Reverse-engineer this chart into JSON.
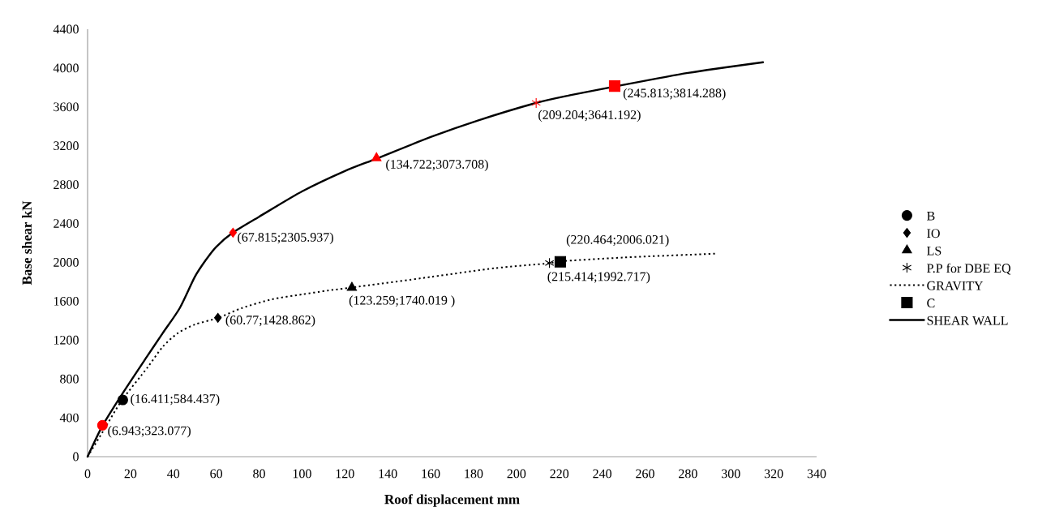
{
  "chart_data": {
    "type": "line",
    "xlabel": "Roof displacement mm",
    "ylabel": "Base shear kN",
    "xlim": [
      0,
      340
    ],
    "xticks": [
      0,
      20,
      40,
      60,
      80,
      100,
      120,
      140,
      160,
      180,
      200,
      220,
      240,
      260,
      280,
      300,
      320,
      340
    ],
    "ylim": [
      0,
      4400
    ],
    "yticks": [
      0,
      400,
      800,
      1200,
      1600,
      2000,
      2400,
      2800,
      3200,
      3600,
      4000,
      4400
    ],
    "legend": "right",
    "series": [
      {
        "name": "B",
        "type": "scatter",
        "marker": "circle",
        "color": "#000000",
        "colors": [
          "#ff0000",
          "#000000"
        ],
        "x": [
          6.943,
          16.411
        ],
        "values": [
          323.077,
          584.437
        ],
        "value_labels": [
          "(6.943;323.077)",
          "(16.411;584.437)"
        ]
      },
      {
        "name": "IO",
        "type": "scatter",
        "marker": "diamond",
        "color": "#000000",
        "colors": [
          "#ff0000",
          "#000000"
        ],
        "x": [
          67.815,
          60.77
        ],
        "values": [
          2305.937,
          1428.862
        ],
        "value_labels": [
          "(67.815;2305.937)",
          "(60.77;1428.862)"
        ]
      },
      {
        "name": "LS",
        "type": "scatter",
        "marker": "triangle",
        "color": "#000000",
        "colors": [
          "#ff0000",
          "#000000"
        ],
        "x": [
          134.722,
          123.259
        ],
        "values": [
          3073.708,
          1740.019
        ],
        "value_labels": [
          "(134.722;3073.708)",
          "(123.259;1740.019 )"
        ]
      },
      {
        "name": "P.P for DBE EQ",
        "type": "scatter",
        "marker": "cross",
        "color": "#000000",
        "colors": [
          "#ff0000",
          "#000000"
        ],
        "x": [
          209.204,
          215.414
        ],
        "values": [
          3641.192,
          1992.717
        ],
        "value_labels": [
          "(209.204;3641.192)",
          "(215.414;1992.717)"
        ]
      },
      {
        "name": "GRAVITY",
        "line_style": "dotted",
        "color": "#000000",
        "x": [
          0,
          8,
          16,
          28,
          35,
          42,
          50,
          61,
          72,
          86,
          100,
          112,
          123,
          160,
          190,
          215,
          220,
          250,
          293
        ],
        "values": [
          0,
          290,
          580,
          920,
          1130,
          1270,
          1360,
          1430,
          1530,
          1620,
          1670,
          1710,
          1740,
          1850,
          1940,
          1990,
          2010,
          2050,
          2090
        ]
      },
      {
        "name": "C",
        "type": "scatter",
        "marker": "square",
        "color": "#000000",
        "colors": [
          "#ff0000",
          "#000000"
        ],
        "x": [
          245.813,
          220.464
        ],
        "values": [
          3814.288,
          2006.021
        ],
        "value_labels": [
          "(245.813;3814.288)",
          "(220.464;2006.021)"
        ]
      },
      {
        "name": "SHEAR WALL",
        "line_style": "solid",
        "color": "#000000",
        "x": [
          0,
          7,
          16,
          28,
          35,
          43,
          50,
          55,
          60,
          68,
          80,
          100,
          120,
          135,
          160,
          182,
          209,
          225,
          246,
          280,
          315
        ],
        "values": [
          0,
          320,
          640,
          1040,
          1270,
          1530,
          1850,
          2020,
          2160,
          2310,
          2470,
          2730,
          2940,
          3070,
          3290,
          3460,
          3640,
          3720,
          3810,
          3950,
          4060
        ]
      }
    ]
  }
}
